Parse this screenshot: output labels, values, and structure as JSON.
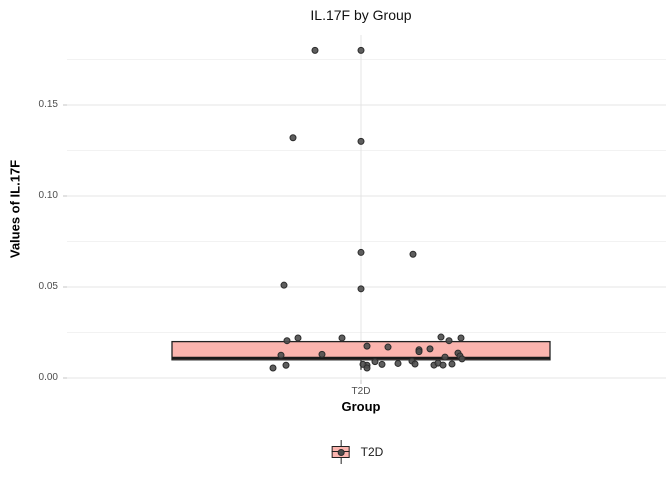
{
  "chart_data": {
    "type": "boxplot",
    "title": "IL.17F by Group",
    "xlabel": "Group",
    "ylabel": "Values of IL.17F",
    "categories": [
      "T2D"
    ],
    "ylim": [
      0,
      0.185
    ],
    "y_ticks": [
      0.0,
      0.05,
      0.1,
      0.15
    ],
    "y_tick_labels": [
      "0.00",
      "0.05",
      "0.10",
      "0.15"
    ],
    "y_minor_ticks": [
      0.025,
      0.075,
      0.125,
      0.175
    ],
    "grid": "major and minor horizontal, one vertical at group center",
    "legend": {
      "position": "bottom-center",
      "items": [
        {
          "label": "T2D",
          "fill": "#FBB4AE"
        }
      ]
    },
    "series": [
      {
        "name": "T2D",
        "box": {
          "lower_whisker": 0.0045,
          "q1": 0.01,
          "median": 0.011,
          "q3": 0.02,
          "upper_whisker": 0.02
        },
        "points": [
          [
            -46,
            0.18
          ],
          [
            0,
            0.18
          ],
          [
            -68,
            0.132
          ],
          [
            0,
            0.13
          ],
          [
            0,
            0.069
          ],
          [
            52,
            0.068
          ],
          [
            -77,
            0.051
          ],
          [
            0,
            0.049
          ],
          [
            -74,
            0.0205
          ],
          [
            -63,
            0.022
          ],
          [
            -19,
            0.022
          ],
          [
            6,
            0.0175
          ],
          [
            -80,
            0.0125
          ],
          [
            -39,
            0.013
          ],
          [
            -88,
            0.0055
          ],
          [
            -75,
            0.007
          ],
          [
            6,
            0.007
          ],
          [
            27,
            0.017
          ],
          [
            80,
            0.0225
          ],
          [
            88,
            0.0205
          ],
          [
            100,
            0.022
          ],
          [
            58,
            0.0155
          ],
          [
            58,
            0.0145
          ],
          [
            69,
            0.016
          ],
          [
            84,
            0.0115
          ],
          [
            97,
            0.0137
          ],
          [
            99,
            0.0121
          ],
          [
            101,
            0.0105
          ],
          [
            2,
            0.0075
          ],
          [
            6,
            0.0055
          ],
          [
            21,
            0.0075
          ],
          [
            37,
            0.008
          ],
          [
            14,
            0.009
          ],
          [
            51,
            0.0093
          ],
          [
            54,
            0.0077
          ],
          [
            73,
            0.0071
          ],
          [
            77,
            0.0082
          ],
          [
            82,
            0.0071
          ],
          [
            91,
            0.0077
          ]
        ]
      }
    ],
    "colors": {
      "box_fill": "#FBB4AE",
      "box_border": "#222222",
      "median": "#1a1a1a",
      "point_fill": "#4d4d4d",
      "point_stroke": "#2b2b2b",
      "grid_major": "#e4e4e4",
      "grid_minor": "#f2f2f2",
      "tick_mark": "#c4c4c4",
      "background": "#ffffff"
    }
  }
}
